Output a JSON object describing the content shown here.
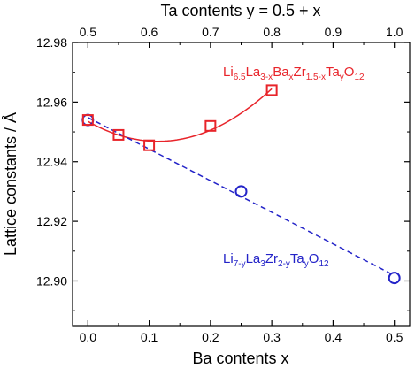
{
  "chart_data": {
    "type": "scatter",
    "xlabel": "Ba contents  x",
    "top_xlabel": "Ta contents  y = 0.5 + x",
    "ylabel": "Lattice constants / Å",
    "xlim": [
      -0.025,
      0.525
    ],
    "ylim": [
      12.885,
      12.98
    ],
    "xticks": [
      "0.0",
      "0.1",
      "0.2",
      "0.3",
      "0.4",
      "0.5"
    ],
    "top_xticks": [
      "0.5",
      "0.6",
      "0.7",
      "0.8",
      "0.9",
      "1.0"
    ],
    "yticks": [
      "12.90",
      "12.92",
      "12.94",
      "12.96",
      "12.98"
    ],
    "grid": false,
    "series": [
      {
        "name": "Li6.5La3-xBaxZr1.5-xTayO12",
        "marker": "square",
        "color": "#e8242a",
        "line": "solid-fit",
        "x": [
          0.0,
          0.05,
          0.1,
          0.2,
          0.3
        ],
        "y": [
          12.954,
          12.949,
          12.9455,
          12.952,
          12.964
        ]
      },
      {
        "name": "Li7-yLa3Zr2-yTayO12",
        "marker": "circle",
        "color": "#2323c8",
        "line": "dashed-fit",
        "x": [
          0.0,
          0.25,
          0.5
        ],
        "y": [
          12.954,
          12.93,
          12.901
        ]
      }
    ],
    "annotations": {
      "red": {
        "base": [
          "Li",
          "La",
          "Ba",
          "Zr",
          "Ta",
          "O"
        ],
        "subs": [
          "6.5",
          "3-x",
          "x",
          "1.5-x",
          "y",
          "12"
        ]
      },
      "blue": {
        "base": [
          "Li",
          "La",
          "Zr",
          "Ta",
          "O"
        ],
        "subs": [
          "7-y",
          "3",
          "2-y",
          "y",
          "12"
        ]
      }
    },
    "colors": {
      "red": "#e8242a",
      "blue": "#2323c8"
    }
  }
}
